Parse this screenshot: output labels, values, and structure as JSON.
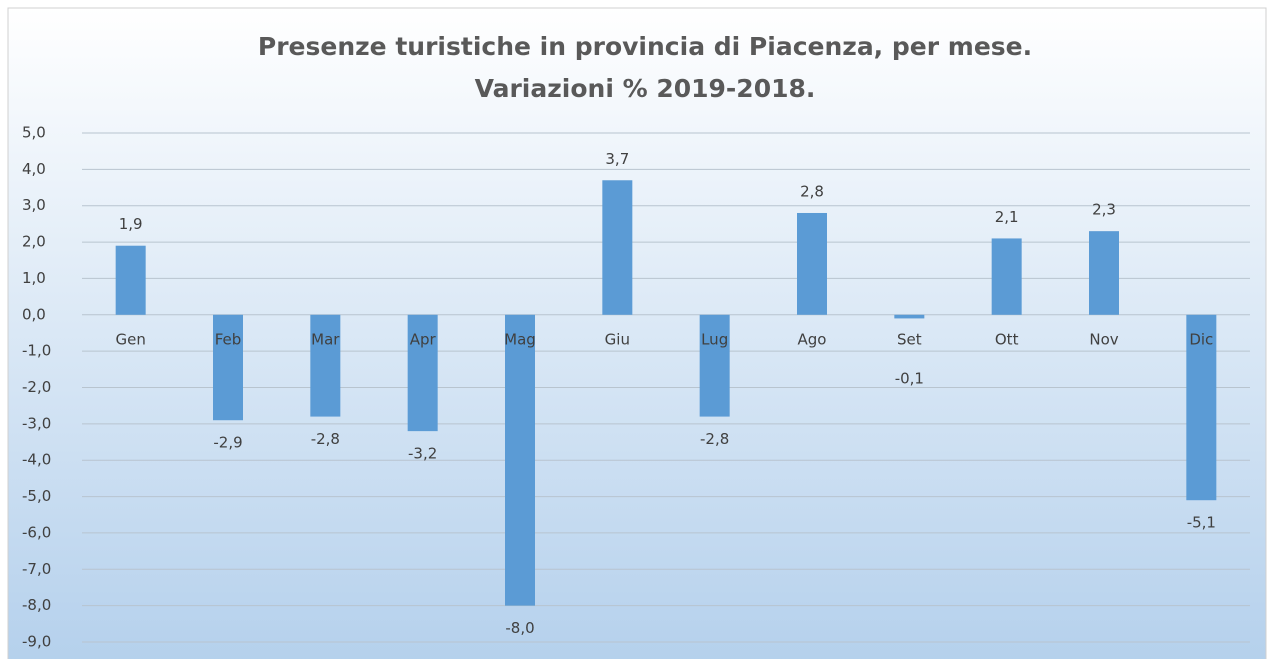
{
  "chart_data": {
    "type": "bar",
    "title": "Presenze turistiche in provincia di Piacenza, per mese.",
    "subtitle": "Variazioni % 2019-2018.",
    "categories": [
      "Gen",
      "Feb",
      "Mar",
      "Apr",
      "Mag",
      "Giu",
      "Lug",
      "Ago",
      "Set",
      "Ott",
      "Nov",
      "Dic"
    ],
    "values": [
      1.9,
      -2.9,
      -2.8,
      -3.2,
      -8.0,
      3.7,
      -2.8,
      2.8,
      -0.1,
      2.1,
      2.3,
      -5.1
    ],
    "value_labels": [
      "1,9",
      "-2,9",
      "-2,8",
      "-3,2",
      "-8,0",
      "3,7",
      "-2,8",
      "2,8",
      "-0,1",
      "2,1",
      "2,3",
      "-5,1"
    ],
    "color": "#5b9bd5",
    "ylim": [
      -9,
      5
    ],
    "yticks": [
      {
        "value": 5,
        "label": "5,0"
      },
      {
        "value": 4,
        "label": "4,0"
      },
      {
        "value": 3,
        "label": "3,0"
      },
      {
        "value": 2,
        "label": "2,0"
      },
      {
        "value": 1,
        "label": "1,0"
      },
      {
        "value": 0,
        "label": "0,0"
      },
      {
        "value": -1,
        "label": "-1,0"
      },
      {
        "value": -2,
        "label": "-2,0"
      },
      {
        "value": -3,
        "label": "-3,0"
      },
      {
        "value": -4,
        "label": "-4,0"
      },
      {
        "value": -5,
        "label": "-5,0"
      },
      {
        "value": -6,
        "label": "-6,0"
      },
      {
        "value": -7,
        "label": "-7,0"
      },
      {
        "value": -8,
        "label": "-8,0"
      },
      {
        "value": -9,
        "label": "-9,0"
      }
    ],
    "grid": true
  }
}
